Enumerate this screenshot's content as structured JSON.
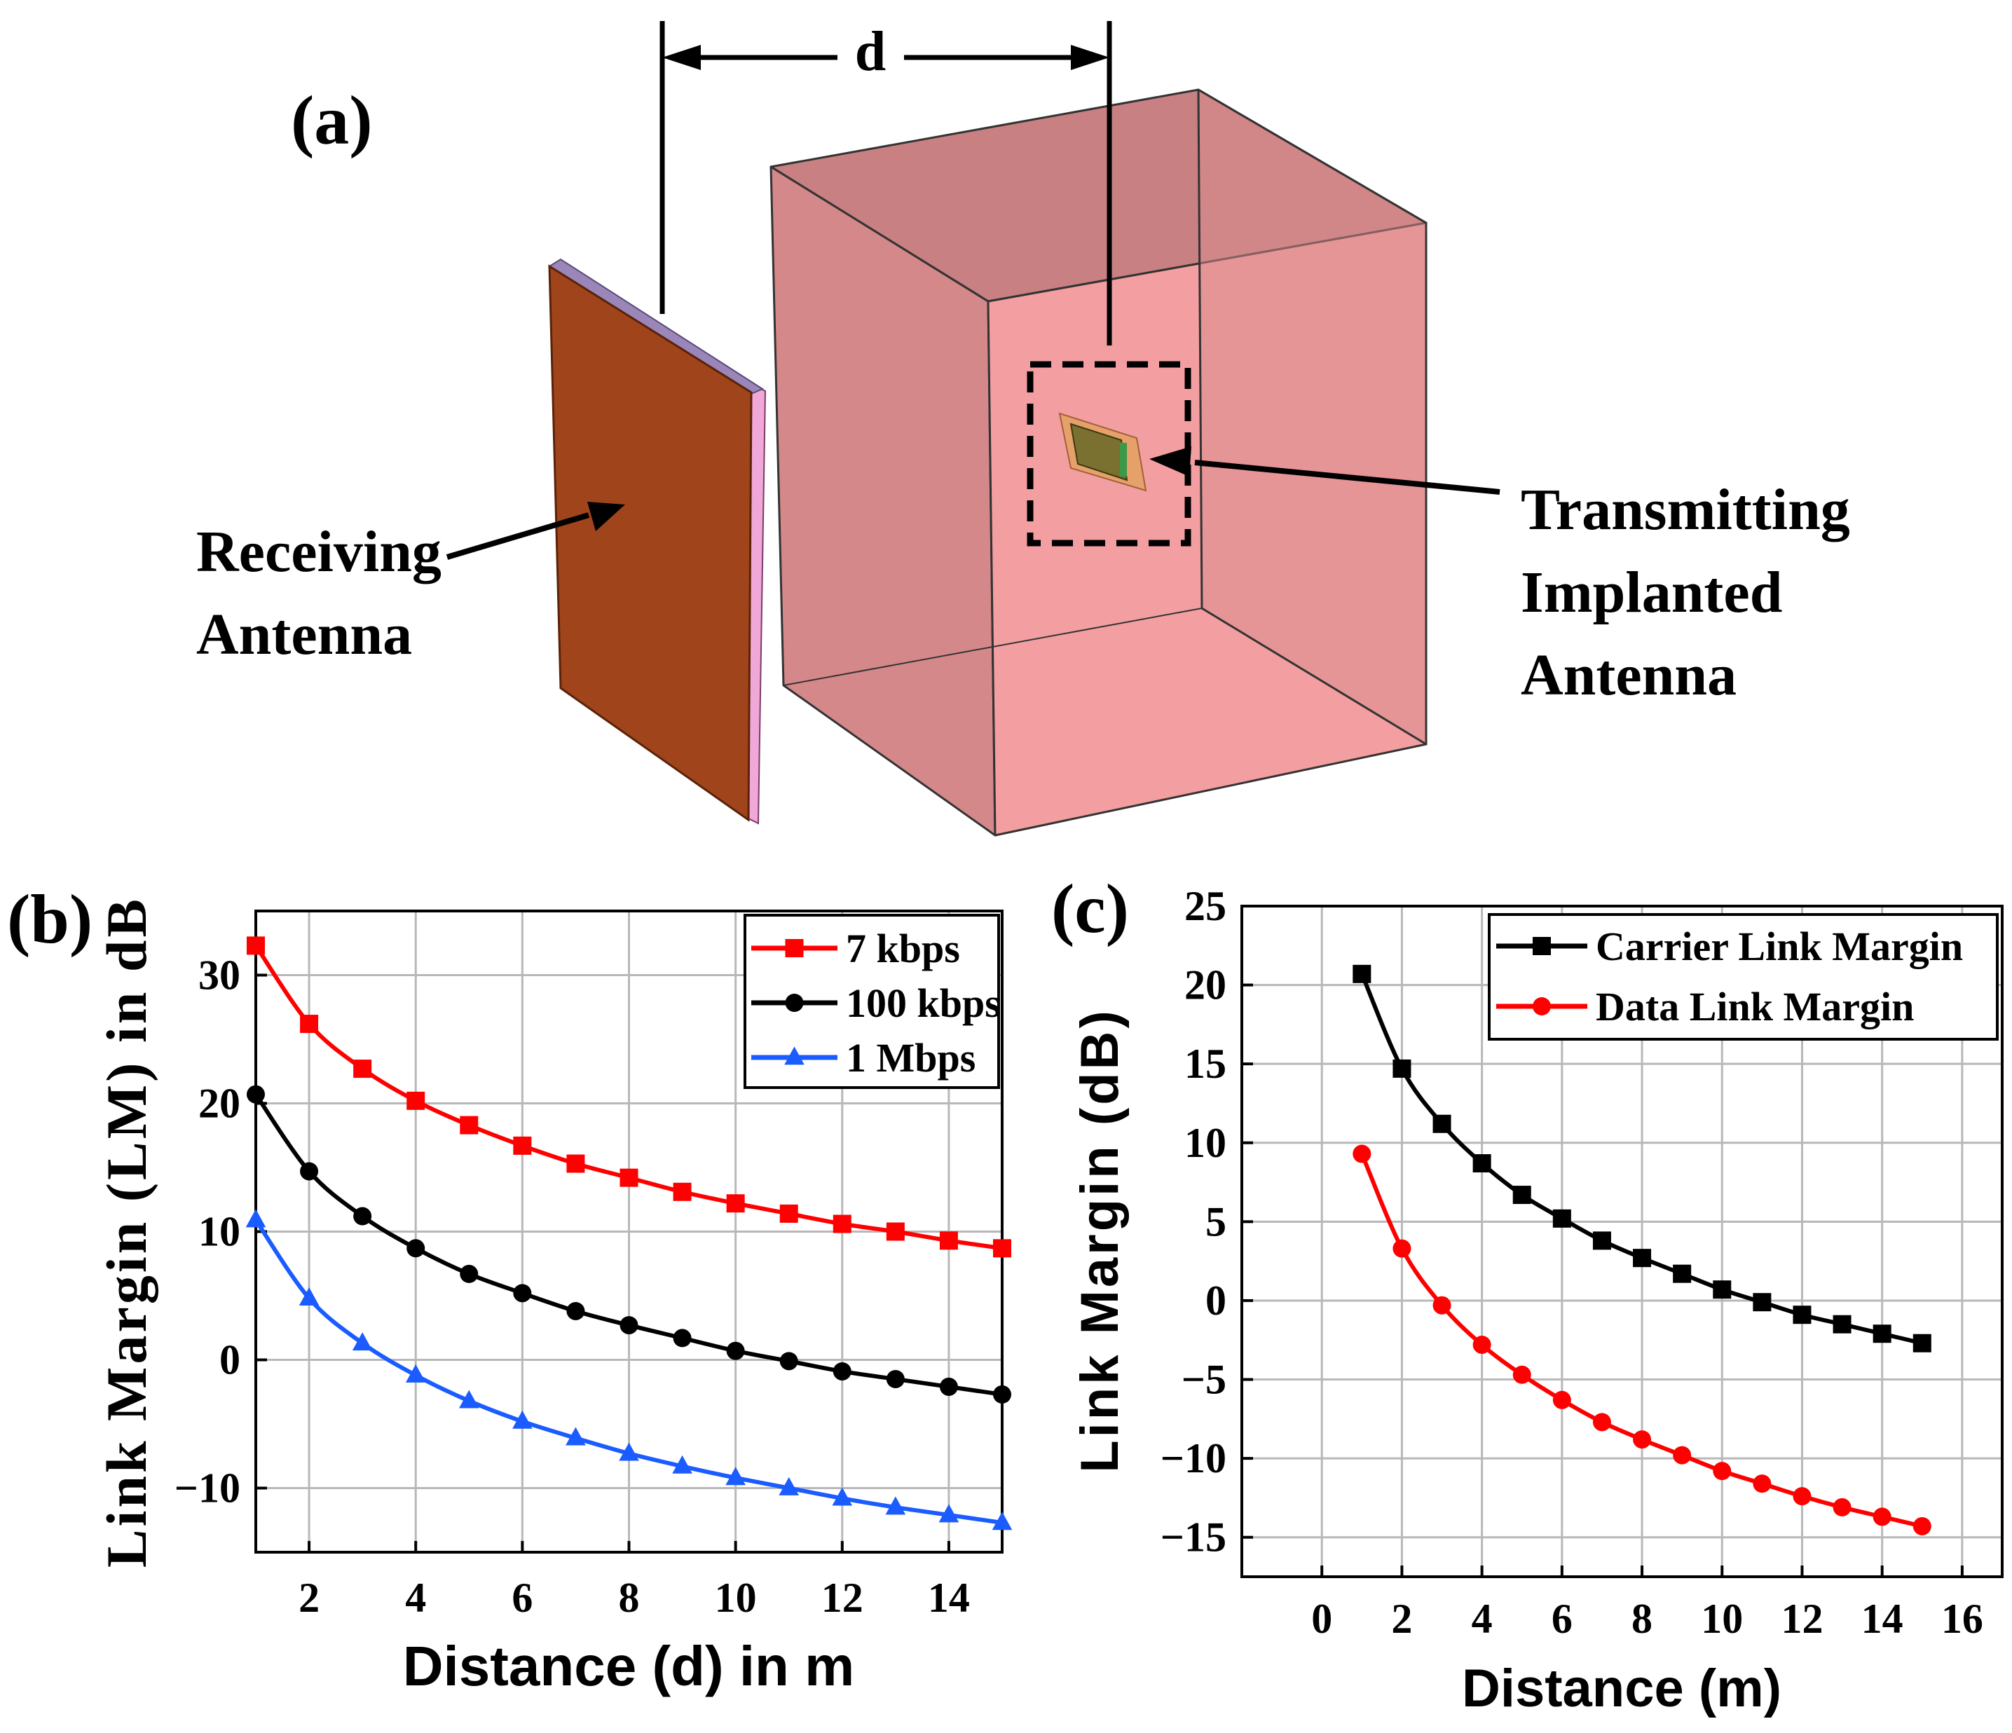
{
  "panel_a": {
    "label": "(a)",
    "distance_label": "d",
    "receiving_label": [
      "Receiving",
      "Antenna"
    ],
    "transmitting_label": [
      "Transmitting",
      "Implanted",
      "Antenna"
    ]
  },
  "chart_data": [
    {
      "panel": "(b)",
      "type": "line",
      "title": "",
      "xlabel": "Distance (d) in m",
      "ylabel": "Link Margin (LM) in dB",
      "xlim": [
        1,
        15
      ],
      "ylim": [
        -15,
        35
      ],
      "xticks": [
        2,
        4,
        6,
        8,
        10,
        12,
        14
      ],
      "xtick_labels": [
        "2",
        "4",
        "6",
        "8",
        "10",
        "12",
        "14"
      ],
      "yticks": [
        -10,
        0,
        10,
        20,
        30
      ],
      "ytick_labels": [
        "−10",
        "0",
        "10",
        "20",
        "30"
      ],
      "grid": true,
      "legend": "top-right",
      "x": [
        1,
        2,
        3,
        4,
        5,
        6,
        7,
        8,
        9,
        10,
        11,
        12,
        13,
        14,
        15
      ],
      "series": [
        {
          "name": "7 kbps",
          "color": "#ff0000",
          "marker": "square",
          "values": [
            32.3,
            26.2,
            22.7,
            20.2,
            18.3,
            16.7,
            15.3,
            14.2,
            13.1,
            12.2,
            11.4,
            10.6,
            10.0,
            9.3,
            8.7
          ]
        },
        {
          "name": "100 kbps",
          "color": "#000000",
          "marker": "circle",
          "values": [
            20.7,
            14.7,
            11.2,
            8.7,
            6.7,
            5.2,
            3.8,
            2.7,
            1.7,
            0.7,
            -0.1,
            -0.9,
            -1.5,
            -2.1,
            -2.7
          ]
        },
        {
          "name": "1 Mbps",
          "color": "#1a5cff",
          "marker": "triangle",
          "values": [
            10.9,
            4.8,
            1.3,
            -1.2,
            -3.2,
            -4.8,
            -6.1,
            -7.3,
            -8.3,
            -9.2,
            -10.0,
            -10.8,
            -11.5,
            -12.1,
            -12.7
          ]
        }
      ]
    },
    {
      "panel": "(c)",
      "type": "line",
      "title": "",
      "xlabel": "Distance (m)",
      "ylabel": "Link Margin (dB)",
      "xlim": [
        -2,
        17
      ],
      "ylim": [
        -17.5,
        25
      ],
      "xticks": [
        0,
        2,
        4,
        6,
        8,
        10,
        12,
        14,
        16
      ],
      "xtick_labels": [
        "0",
        "2",
        "4",
        "6",
        "8",
        "10",
        "12",
        "14",
        "16"
      ],
      "yticks": [
        -15,
        -10,
        -5,
        0,
        5,
        10,
        15,
        20,
        25
      ],
      "ytick_labels": [
        "−15",
        "−10",
        "−5",
        "0",
        "5",
        "10",
        "15",
        "20",
        "25"
      ],
      "grid": true,
      "legend": "top-right",
      "x": [
        1,
        2,
        3,
        4,
        5,
        6,
        7,
        8,
        9,
        10,
        11,
        12,
        13,
        14,
        15
      ],
      "series": [
        {
          "name": "Carrier Link Margin",
          "color": "#000000",
          "marker": "square",
          "values": [
            20.7,
            14.7,
            11.2,
            8.7,
            6.7,
            5.2,
            3.8,
            2.7,
            1.7,
            0.7,
            -0.1,
            -0.9,
            -1.5,
            -2.1,
            -2.7
          ]
        },
        {
          "name": "Data Link Margin",
          "color": "#ff0000",
          "marker": "circle",
          "values": [
            9.3,
            3.3,
            -0.3,
            -2.8,
            -4.7,
            -6.3,
            -7.7,
            -8.8,
            -9.8,
            -10.8,
            -11.6,
            -12.4,
            -13.1,
            -13.7,
            -14.3
          ]
        }
      ]
    }
  ]
}
